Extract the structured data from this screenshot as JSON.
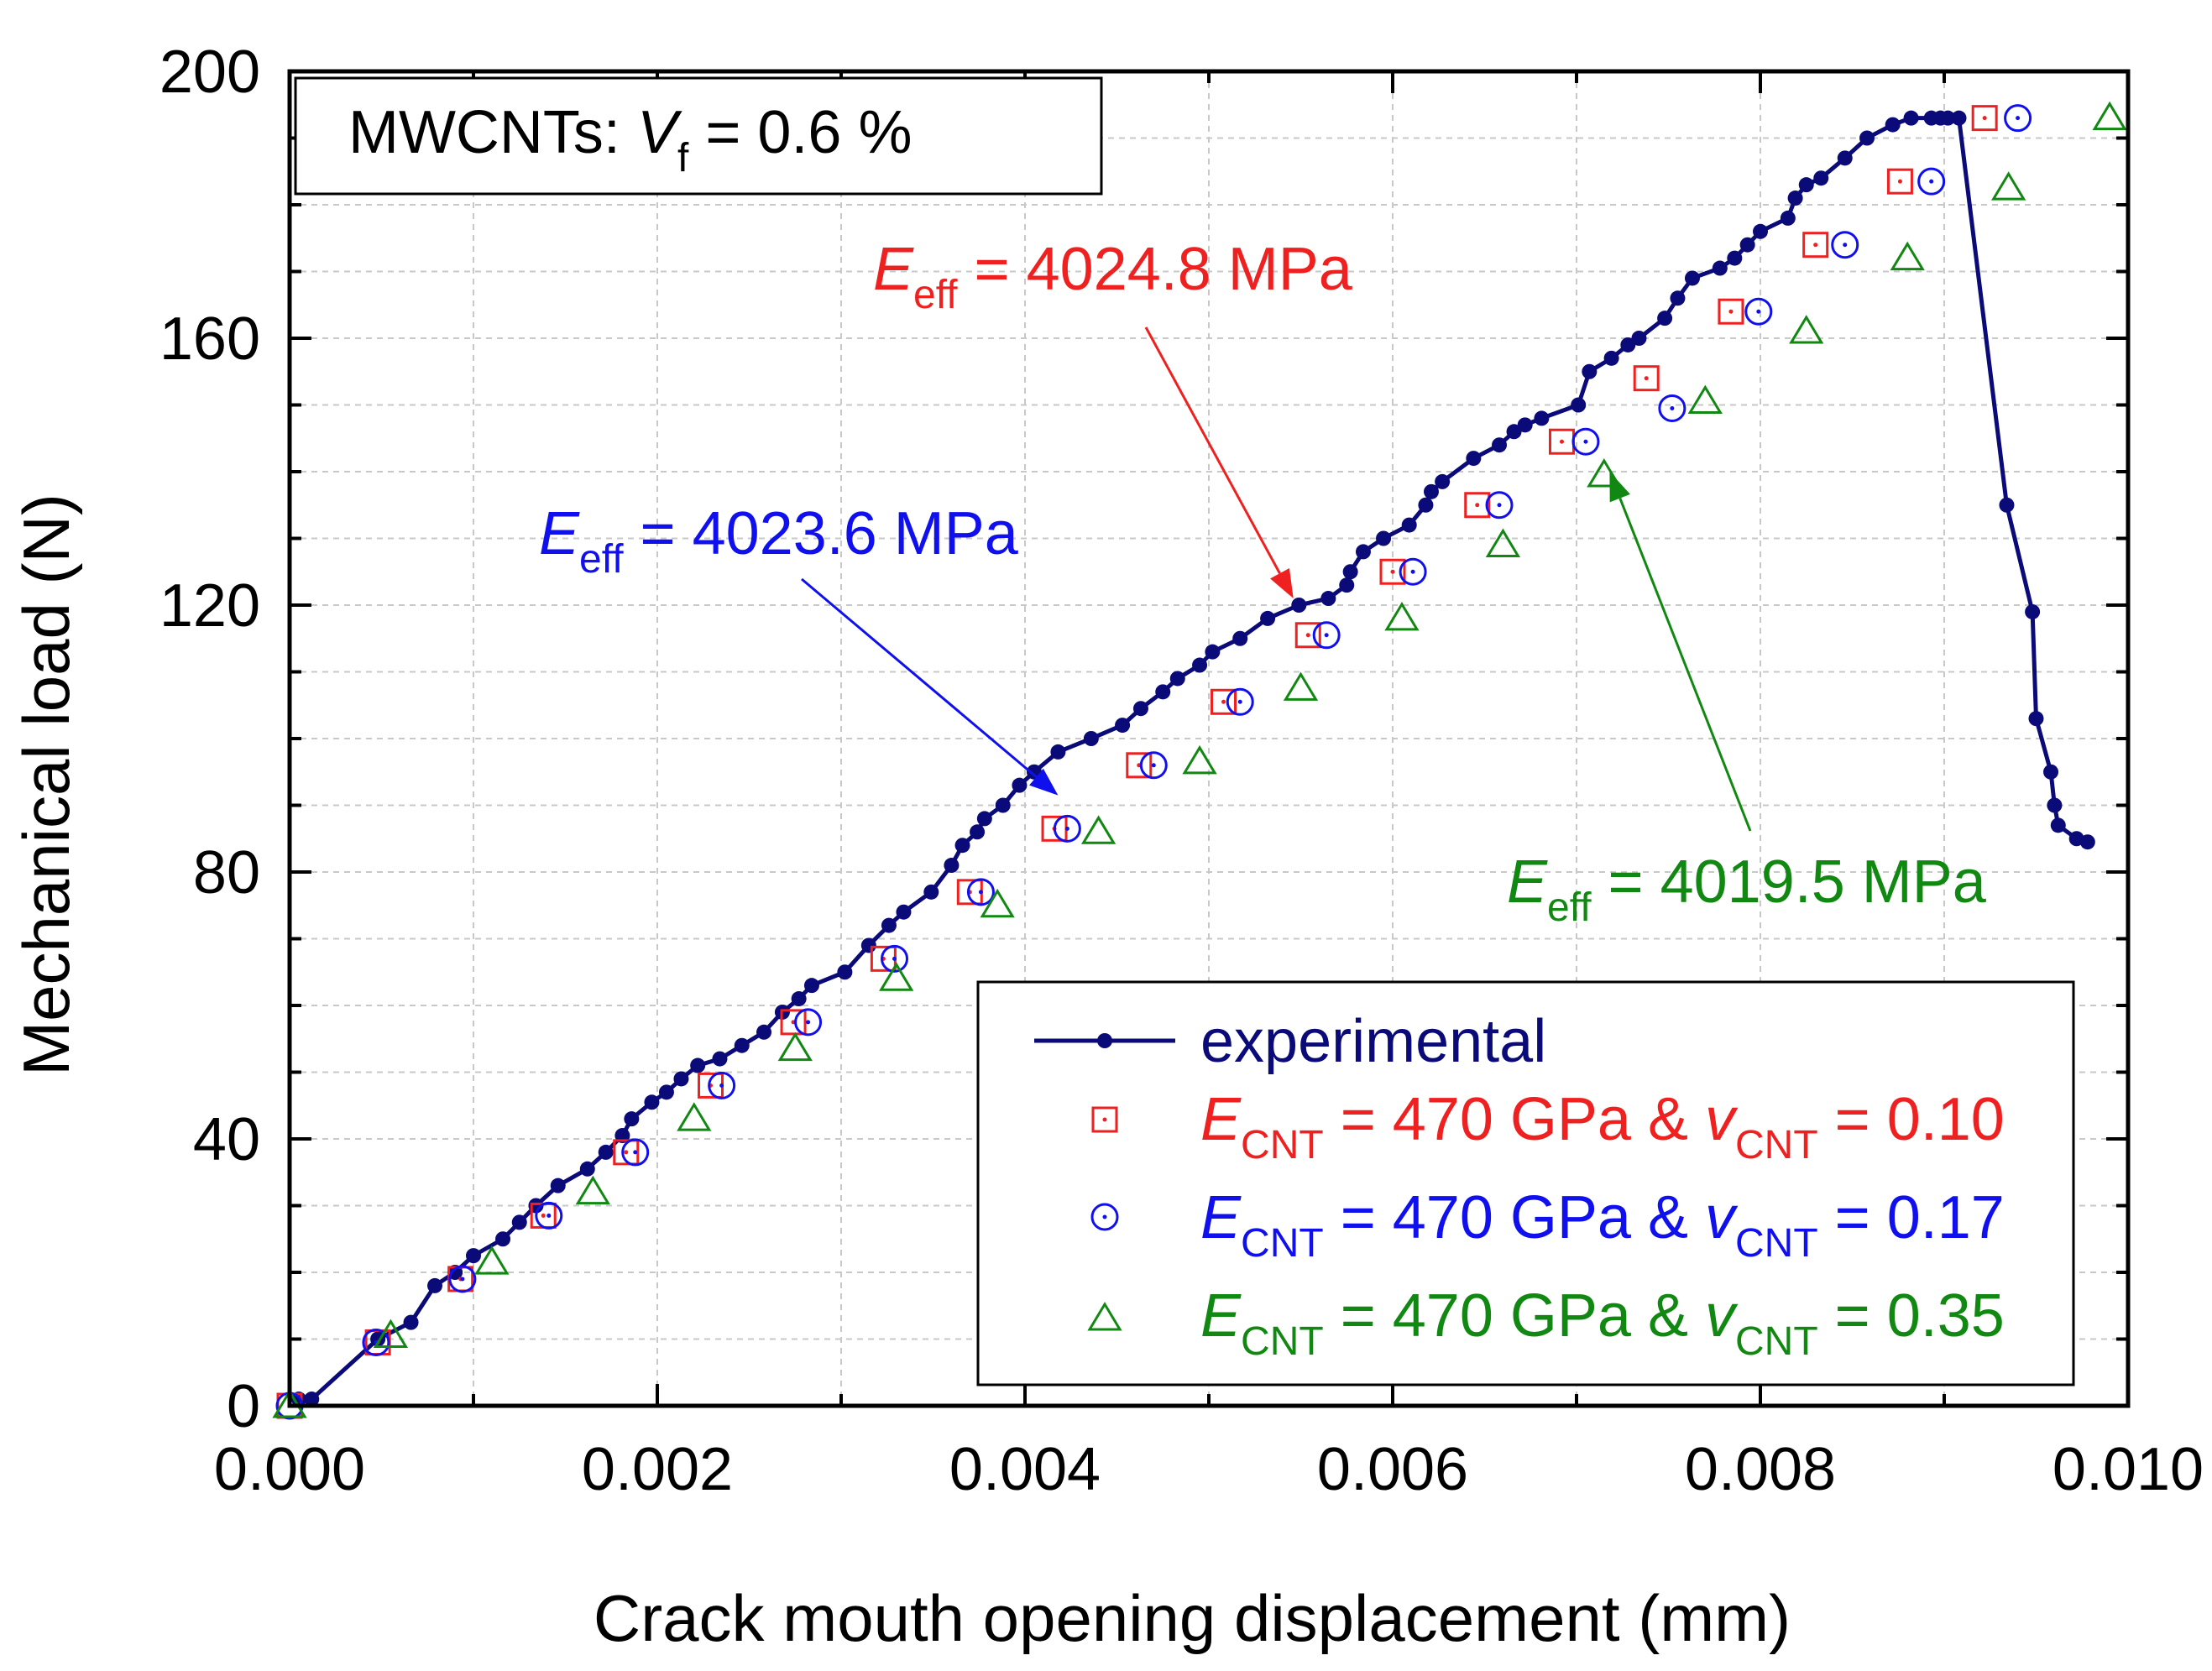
{
  "chart_data": {
    "type": "scatter",
    "xlabel": "Crack mouth opening displacement (mm)",
    "ylabel": "Mechanical load (N)",
    "xlim": [
      0.0,
      0.01
    ],
    "ylim": [
      0,
      200
    ],
    "x_ticks": [
      0.0,
      0.002,
      0.004,
      0.006,
      0.008,
      0.01
    ],
    "x_tick_labels": [
      "0.000",
      "0.002",
      "0.004",
      "0.006",
      "0.008",
      "0.010"
    ],
    "y_ticks": [
      0,
      40,
      80,
      120,
      160,
      200
    ],
    "y_tick_labels": [
      "0",
      "40",
      "80",
      "120",
      "160",
      "200"
    ],
    "grid": true,
    "info_box": {
      "prefix": "MWCNTs: ",
      "var": "V",
      "sub": "f",
      "suffix": " = 0.6 %"
    },
    "legend_position": "bottom-right",
    "series": [
      {
        "name": "experimental",
        "style": "line-dot",
        "color": "#0a0a78",
        "x": [
          5e-05,
          0.00012,
          0.00048,
          0.00066,
          0.00079,
          0.0009,
          0.001,
          0.00116,
          0.00125,
          0.00134,
          0.00146,
          0.00162,
          0.00172,
          0.00181,
          0.00186,
          0.00197,
          0.00205,
          0.00213,
          0.00222,
          0.00234,
          0.00246,
          0.00258,
          0.00268,
          0.00277,
          0.00284,
          0.00302,
          0.00315,
          0.00326,
          0.00334,
          0.00349,
          0.0036,
          0.00366,
          0.00374,
          0.00378,
          0.00388,
          0.00397,
          0.00405,
          0.00418,
          0.00436,
          0.00453,
          0.00463,
          0.00475,
          0.00483,
          0.00495,
          0.00502,
          0.00517,
          0.00532,
          0.00549,
          0.00565,
          0.00575,
          0.00577,
          0.00584,
          0.00595,
          0.00609,
          0.00618,
          0.00621,
          0.00627,
          0.00644,
          0.00658,
          0.00666,
          0.00672,
          0.00681,
          0.00701,
          0.00707,
          0.00719,
          0.00728,
          0.00734,
          0.00748,
          0.00755,
          0.00763,
          0.00778,
          0.00786,
          0.00793,
          0.008,
          0.00815,
          0.00819,
          0.00825,
          0.00833,
          0.00846,
          0.00858,
          0.00872,
          0.00882,
          0.00893,
          0.00898,
          0.00902,
          0.00908,
          0.00934,
          0.00948,
          0.0095,
          0.00958,
          0.0096,
          0.00962,
          0.00972,
          0.00978
        ],
        "y": [
          1,
          1,
          10,
          12.5,
          18,
          20,
          22.5,
          25,
          27.5,
          30,
          33,
          35.5,
          38,
          40.5,
          43,
          45.5,
          47,
          49,
          51,
          52,
          54,
          56,
          59,
          61,
          63,
          65,
          69,
          72,
          74,
          77,
          81,
          84,
          86,
          88,
          90,
          93,
          95,
          98,
          100,
          102,
          104.5,
          107,
          109,
          111,
          113,
          115,
          118,
          120,
          121,
          123,
          125,
          128,
          130,
          132,
          135,
          137,
          138.5,
          142,
          144,
          146,
          147,
          148,
          150,
          155,
          157,
          159,
          160,
          163,
          166,
          169,
          170.5,
          172,
          174,
          176,
          178,
          181,
          183,
          184,
          187,
          190,
          192,
          193,
          193,
          193,
          193,
          193,
          135,
          119,
          103,
          95,
          90,
          87,
          85,
          84.5
        ]
      },
      {
        "name_var": "E",
        "name_sub": "CNT",
        "name_mid": " = 470 GPa & ",
        "name_var2": "v",
        "name_sub2": "CNT",
        "name_end": " = 0.10",
        "style": "square",
        "color": "#ee2020",
        "x": [
          0.0,
          0.00048,
          0.00093,
          0.00138,
          0.00183,
          0.00229,
          0.00274,
          0.00323,
          0.0037,
          0.00416,
          0.00462,
          0.00508,
          0.00554,
          0.006,
          0.00646,
          0.00692,
          0.00738,
          0.00784,
          0.0083,
          0.00876,
          0.00922
        ],
        "y": [
          0,
          9.5,
          19,
          28.5,
          38,
          48,
          57.5,
          67,
          77,
          86.5,
          96,
          105.5,
          115.5,
          125,
          135,
          144.5,
          154,
          164,
          174,
          183.5,
          193
        ]
      },
      {
        "name_var": "E",
        "name_sub": "CNT",
        "name_mid": " = 470 GPa & ",
        "name_var2": "v",
        "name_sub2": "CNT",
        "name_end": " = 0.17",
        "style": "circle",
        "color": "#1010ee",
        "x": [
          0.0,
          0.00047,
          0.00094,
          0.00141,
          0.00188,
          0.00235,
          0.00282,
          0.00329,
          0.00376,
          0.00423,
          0.0047,
          0.00517,
          0.00564,
          0.00611,
          0.00658,
          0.00705,
          0.00752,
          0.00799,
          0.00846,
          0.00893,
          0.0094
        ],
        "y": [
          0,
          9.5,
          19,
          28.5,
          38,
          48,
          57.5,
          67,
          77,
          86.5,
          96,
          105.5,
          115.5,
          125,
          135,
          144.5,
          149.5,
          164,
          174,
          183.5,
          193
        ]
      },
      {
        "name_var": "E",
        "name_sub": "CNT",
        "name_mid": " = 470 GPa & ",
        "name_var2": "v",
        "name_sub2": "CNT",
        "name_end": " = 0.35",
        "style": "triangle",
        "color": "#118811",
        "x": [
          0.0,
          0.00055,
          0.0011,
          0.00165,
          0.0022,
          0.00275,
          0.0033,
          0.00385,
          0.0044,
          0.00495,
          0.0055,
          0.00605,
          0.0066,
          0.00715,
          0.0077,
          0.00825,
          0.0088,
          0.00935,
          0.0099
        ],
        "y": [
          0,
          10.5,
          21.5,
          32,
          43,
          53.5,
          64,
          75,
          86,
          96.5,
          107.5,
          118,
          129,
          139.5,
          150.5,
          161,
          172,
          182.5,
          193
        ]
      }
    ],
    "annotations": [
      {
        "var": "E",
        "sub": "eff",
        "text": " = 4024.8 MPa",
        "color": "#ee2020",
        "points_to": [
          0.00546,
          121
        ]
      },
      {
        "var": "E",
        "sub": "eff",
        "text": " = 4023.6 MPa",
        "color": "#1010ee",
        "points_to": [
          0.00418,
          91.5
        ]
      },
      {
        "var": "E",
        "sub": "eff",
        "text": " = 4019.5 MPa",
        "color": "#118811",
        "points_to": [
          0.00718,
          140
        ]
      }
    ]
  }
}
